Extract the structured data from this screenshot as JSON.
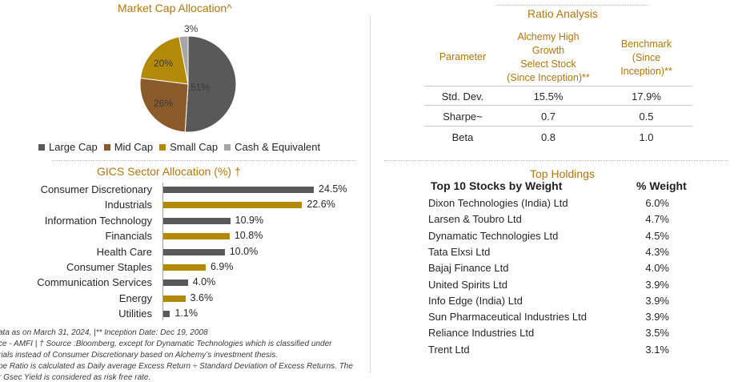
{
  "colors": {
    "accent_gold": "#b0760f",
    "large_cap": "#595959",
    "mid_cap": "#8b5a2b",
    "small_cap": "#b38a07",
    "cash": "#a6a6a6",
    "bar_dark": "#595959",
    "bar_gold": "#b38a07"
  },
  "market_cap": {
    "title": "Market Cap Allocation^",
    "chart_data": {
      "type": "pie",
      "title": "Market Cap Allocation^",
      "slices": [
        {
          "label": "Large Cap",
          "value": 51,
          "display": "51%",
          "color": "#595959"
        },
        {
          "label": "Mid Cap",
          "value": 26,
          "display": "26%",
          "color": "#8b5a2b"
        },
        {
          "label": "Small Cap",
          "value": 20,
          "display": "20%",
          "color": "#b38a07"
        },
        {
          "label": "Cash & Equivalent",
          "value": 3,
          "display": "3%",
          "color": "#a6a6a6"
        }
      ]
    },
    "legend": [
      "Large Cap",
      "Mid Cap",
      "Small Cap",
      "Cash & Equivalent"
    ]
  },
  "ratio": {
    "title": "Ratio Analysis",
    "header_param": "Parameter",
    "header_fund": [
      "Alchemy High",
      "Growth",
      "Select Stock",
      "(Since Inception)**"
    ],
    "header_bench": [
      "Benchmark",
      "(Since",
      "Inception)**"
    ],
    "rows": [
      {
        "param": "Std. Dev.",
        "fund": "15.5%",
        "bench": "17.9%"
      },
      {
        "param": "Sharpe~",
        "fund": "0.7",
        "bench": "0.5"
      },
      {
        "param": "Beta",
        "fund": "0.8",
        "bench": "1.0"
      }
    ]
  },
  "sector": {
    "title": "GICS Sector Allocation (%) †",
    "chart_data": {
      "type": "bar",
      "orientation": "horizontal",
      "title": "GICS Sector Allocation (%) †",
      "categories": [
        "Consumer Discretionary",
        "Industrials",
        "Information Technology",
        "Financials",
        "Health Care",
        "Consumer Staples",
        "Communication Services",
        "Energy",
        "Utilities"
      ],
      "values": [
        24.5,
        22.6,
        10.9,
        10.8,
        10.0,
        6.9,
        4.0,
        3.6,
        1.1
      ],
      "labels": [
        "24.5%",
        "22.6%",
        "10.9%",
        "10.8%",
        "10.0%",
        "6.9%",
        "4.0%",
        "3.6%",
        "1.1%"
      ],
      "colors": [
        "#595959",
        "#b38a07",
        "#595959",
        "#b38a07",
        "#595959",
        "#b38a07",
        "#595959",
        "#b38a07",
        "#595959"
      ],
      "xlim": [
        0,
        24.5
      ]
    }
  },
  "holdings": {
    "title": "Top Holdings",
    "col_stock": "Top 10 Stocks by Weight",
    "col_weight": "% Weight",
    "items": [
      {
        "name": "Dixon Technologies (India) Ltd",
        "weight": "6.0%"
      },
      {
        "name": "Larsen & Toubro Ltd",
        "weight": "4.7%"
      },
      {
        "name": "Dynamatic Technologies Ltd",
        "weight": "4.5%"
      },
      {
        "name": "Tata Elxsi Ltd",
        "weight": "4.3%"
      },
      {
        "name": "Bajaj Finance Ltd",
        "weight": "4.0%"
      },
      {
        "name": "United Spirits Ltd",
        "weight": "3.9%"
      },
      {
        "name": "Info Edge (India) Ltd",
        "weight": "3.9%"
      },
      {
        "name": "Sun Pharmaceutical Industries Ltd",
        "weight": "3.9%"
      },
      {
        "name": "Reliance Industries Ltd",
        "weight": "3.5%"
      },
      {
        "name": "Trent Ltd",
        "weight": "3.1%"
      }
    ]
  },
  "footnotes": [
    "ata as on March 31, 2024, |** Inception Date: Dec 19, 2008",
    "ce - AMFI | † Source :Bloomberg, except for Dynamatic Technologies which is classified under",
    "rials instead of Consumer Discretionary based on Alchemy’s investment thesis.",
    "pe Ratio is calculated as Daily average Excess Return ÷ Standard Deviation of Excess Returns. The",
    "r Gsec Yield is considered as risk free rate."
  ]
}
